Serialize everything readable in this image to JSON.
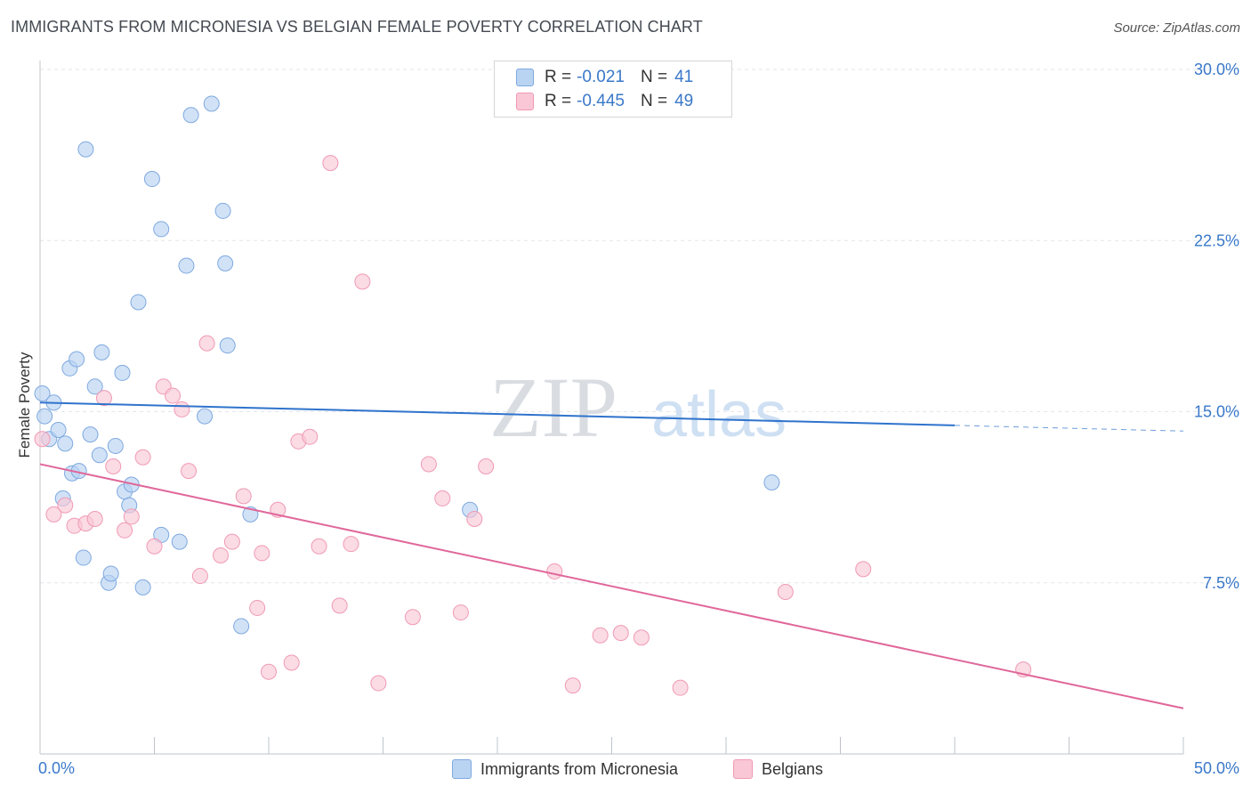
{
  "header": {
    "title": "IMMIGRANTS FROM MICRONESIA VS BELGIAN FEMALE POVERTY CORRELATION CHART",
    "source": "Source: ZipAtlas.com"
  },
  "watermark": {
    "zip": "ZIP",
    "atlas": "atlas"
  },
  "legend": {
    "rows": [
      {
        "r_label": "R = ",
        "r_value": "-0.021",
        "n_label": "N = ",
        "n_value": "41",
        "color": "#b9d3f2"
      },
      {
        "r_label": "R = ",
        "r_value": "-0.445",
        "n_label": "N = ",
        "n_value": "49",
        "color": "#f9c7d6"
      }
    ]
  },
  "bottom_legend": [
    {
      "label": "Immigrants from Micronesia",
      "color": "#b9d3f2"
    },
    {
      "label": "Belgians",
      "color": "#f9c7d6"
    }
  ],
  "chart_data": {
    "type": "scatter",
    "title": "IMMIGRANTS FROM MICRONESIA VS BELGIAN FEMALE POVERTY CORRELATION CHART",
    "xlabel": "",
    "ylabel": "Female Poverty",
    "xlim": [
      0,
      50
    ],
    "ylim": [
      0,
      30
    ],
    "x_tick_labels": [
      "0.0%",
      "50.0%"
    ],
    "y_ticks": [
      7.5,
      15.0,
      22.5,
      30.0
    ],
    "y_tick_labels": [
      "7.5%",
      "15.0%",
      "22.5%",
      "30.0%"
    ],
    "grid": true,
    "series": [
      {
        "name": "Immigrants from Micronesia",
        "color": "#b9d3f2",
        "stroke": "#7fa9df",
        "trend_color": "#2f73cc",
        "trend": {
          "x0": 0,
          "y0": 15.4,
          "x1": 40,
          "y1": 14.4,
          "dashed_to_x": 50,
          "dashed_to_y": 14.15
        },
        "points": [
          [
            0.1,
            15.8
          ],
          [
            0.2,
            14.8
          ],
          [
            0.4,
            13.8
          ],
          [
            0.6,
            15.4
          ],
          [
            0.8,
            14.2
          ],
          [
            1.1,
            13.6
          ],
          [
            1.0,
            11.2
          ],
          [
            1.4,
            12.3
          ],
          [
            1.7,
            12.4
          ],
          [
            1.9,
            8.6
          ],
          [
            2.0,
            26.5
          ],
          [
            1.3,
            16.9
          ],
          [
            1.6,
            17.3
          ],
          [
            2.2,
            14.0
          ],
          [
            2.4,
            16.1
          ],
          [
            2.6,
            13.1
          ],
          [
            2.7,
            17.6
          ],
          [
            3.0,
            7.5
          ],
          [
            3.1,
            7.9
          ],
          [
            3.3,
            13.5
          ],
          [
            3.6,
            16.7
          ],
          [
            3.7,
            11.5
          ],
          [
            3.9,
            10.9
          ],
          [
            4.0,
            11.8
          ],
          [
            4.3,
            19.8
          ],
          [
            4.5,
            7.3
          ],
          [
            4.9,
            25.2
          ],
          [
            5.3,
            9.6
          ],
          [
            5.3,
            23.0
          ],
          [
            6.1,
            9.3
          ],
          [
            6.4,
            21.4
          ],
          [
            6.6,
            28.0
          ],
          [
            7.2,
            14.8
          ],
          [
            7.5,
            28.5
          ],
          [
            8.0,
            23.8
          ],
          [
            8.1,
            21.5
          ],
          [
            8.2,
            17.9
          ],
          [
            8.8,
            5.6
          ],
          [
            9.2,
            10.5
          ],
          [
            18.8,
            10.7
          ],
          [
            32.0,
            11.9
          ]
        ]
      },
      {
        "name": "Belgians",
        "color": "#f9c7d6",
        "stroke": "#f09ab5",
        "trend_color": "#e0679a",
        "trend": {
          "x0": 0,
          "y0": 12.7,
          "x1": 50,
          "y1": 2.0
        },
        "points": [
          [
            0.1,
            13.8
          ],
          [
            0.6,
            10.5
          ],
          [
            1.1,
            10.9
          ],
          [
            1.5,
            10.0
          ],
          [
            2.0,
            10.1
          ],
          [
            2.4,
            10.3
          ],
          [
            2.8,
            15.6
          ],
          [
            3.2,
            12.6
          ],
          [
            3.7,
            9.8
          ],
          [
            4.0,
            10.4
          ],
          [
            4.5,
            13.0
          ],
          [
            5.0,
            9.1
          ],
          [
            5.4,
            16.1
          ],
          [
            5.8,
            15.7
          ],
          [
            6.2,
            15.1
          ],
          [
            6.5,
            12.4
          ],
          [
            7.0,
            7.8
          ],
          [
            7.3,
            18.0
          ],
          [
            7.9,
            8.7
          ],
          [
            8.4,
            9.3
          ],
          [
            8.9,
            11.3
          ],
          [
            9.5,
            6.4
          ],
          [
            9.7,
            8.8
          ],
          [
            10.0,
            3.6
          ],
          [
            10.4,
            10.7
          ],
          [
            11.0,
            4.0
          ],
          [
            11.3,
            13.7
          ],
          [
            11.8,
            13.9
          ],
          [
            12.2,
            9.1
          ],
          [
            12.7,
            25.9
          ],
          [
            13.1,
            6.5
          ],
          [
            13.6,
            9.2
          ],
          [
            14.1,
            20.7
          ],
          [
            14.8,
            3.1
          ],
          [
            16.3,
            6.0
          ],
          [
            17.0,
            12.7
          ],
          [
            17.6,
            11.2
          ],
          [
            18.4,
            6.2
          ],
          [
            19.0,
            10.3
          ],
          [
            19.5,
            12.6
          ],
          [
            22.5,
            8.0
          ],
          [
            23.3,
            3.0
          ],
          [
            24.5,
            5.2
          ],
          [
            25.4,
            5.3
          ],
          [
            26.3,
            5.1
          ],
          [
            28.0,
            2.9
          ],
          [
            32.6,
            7.1
          ],
          [
            36.0,
            8.1
          ],
          [
            43.0,
            3.7
          ]
        ]
      }
    ]
  }
}
